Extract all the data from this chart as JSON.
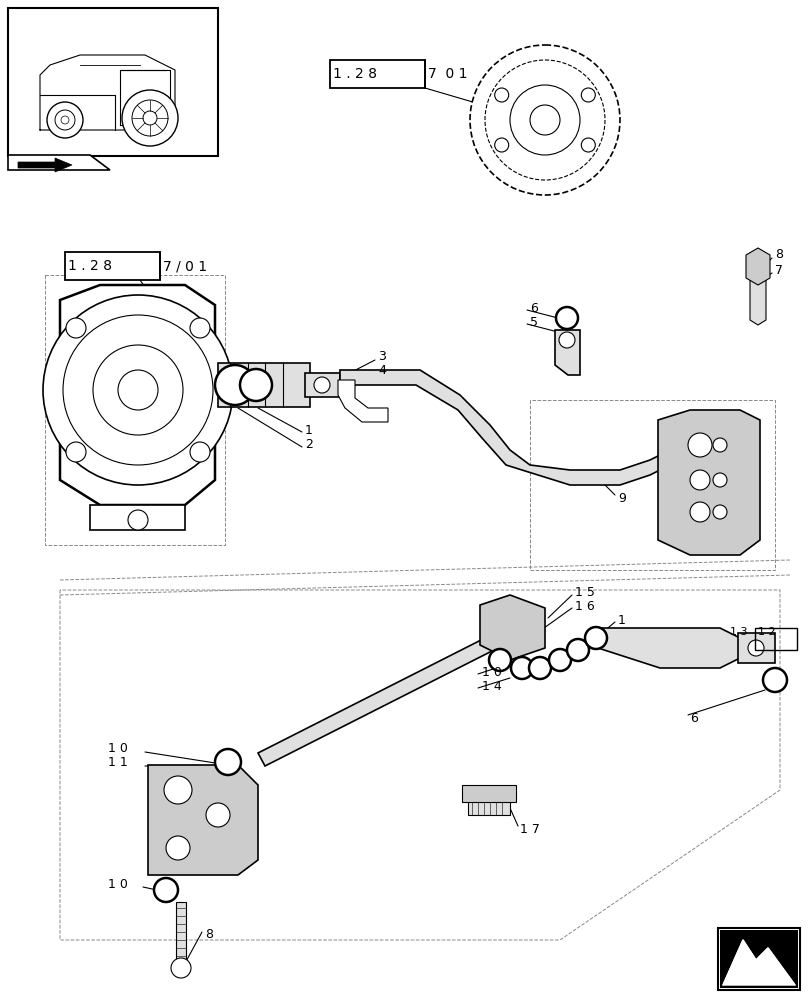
{
  "bg_color": "#ffffff",
  "line_color": "#000000",
  "gray1": "#cccccc",
  "gray2": "#e0e0e0",
  "gray3": "#888888",
  "gray4": "#444444"
}
